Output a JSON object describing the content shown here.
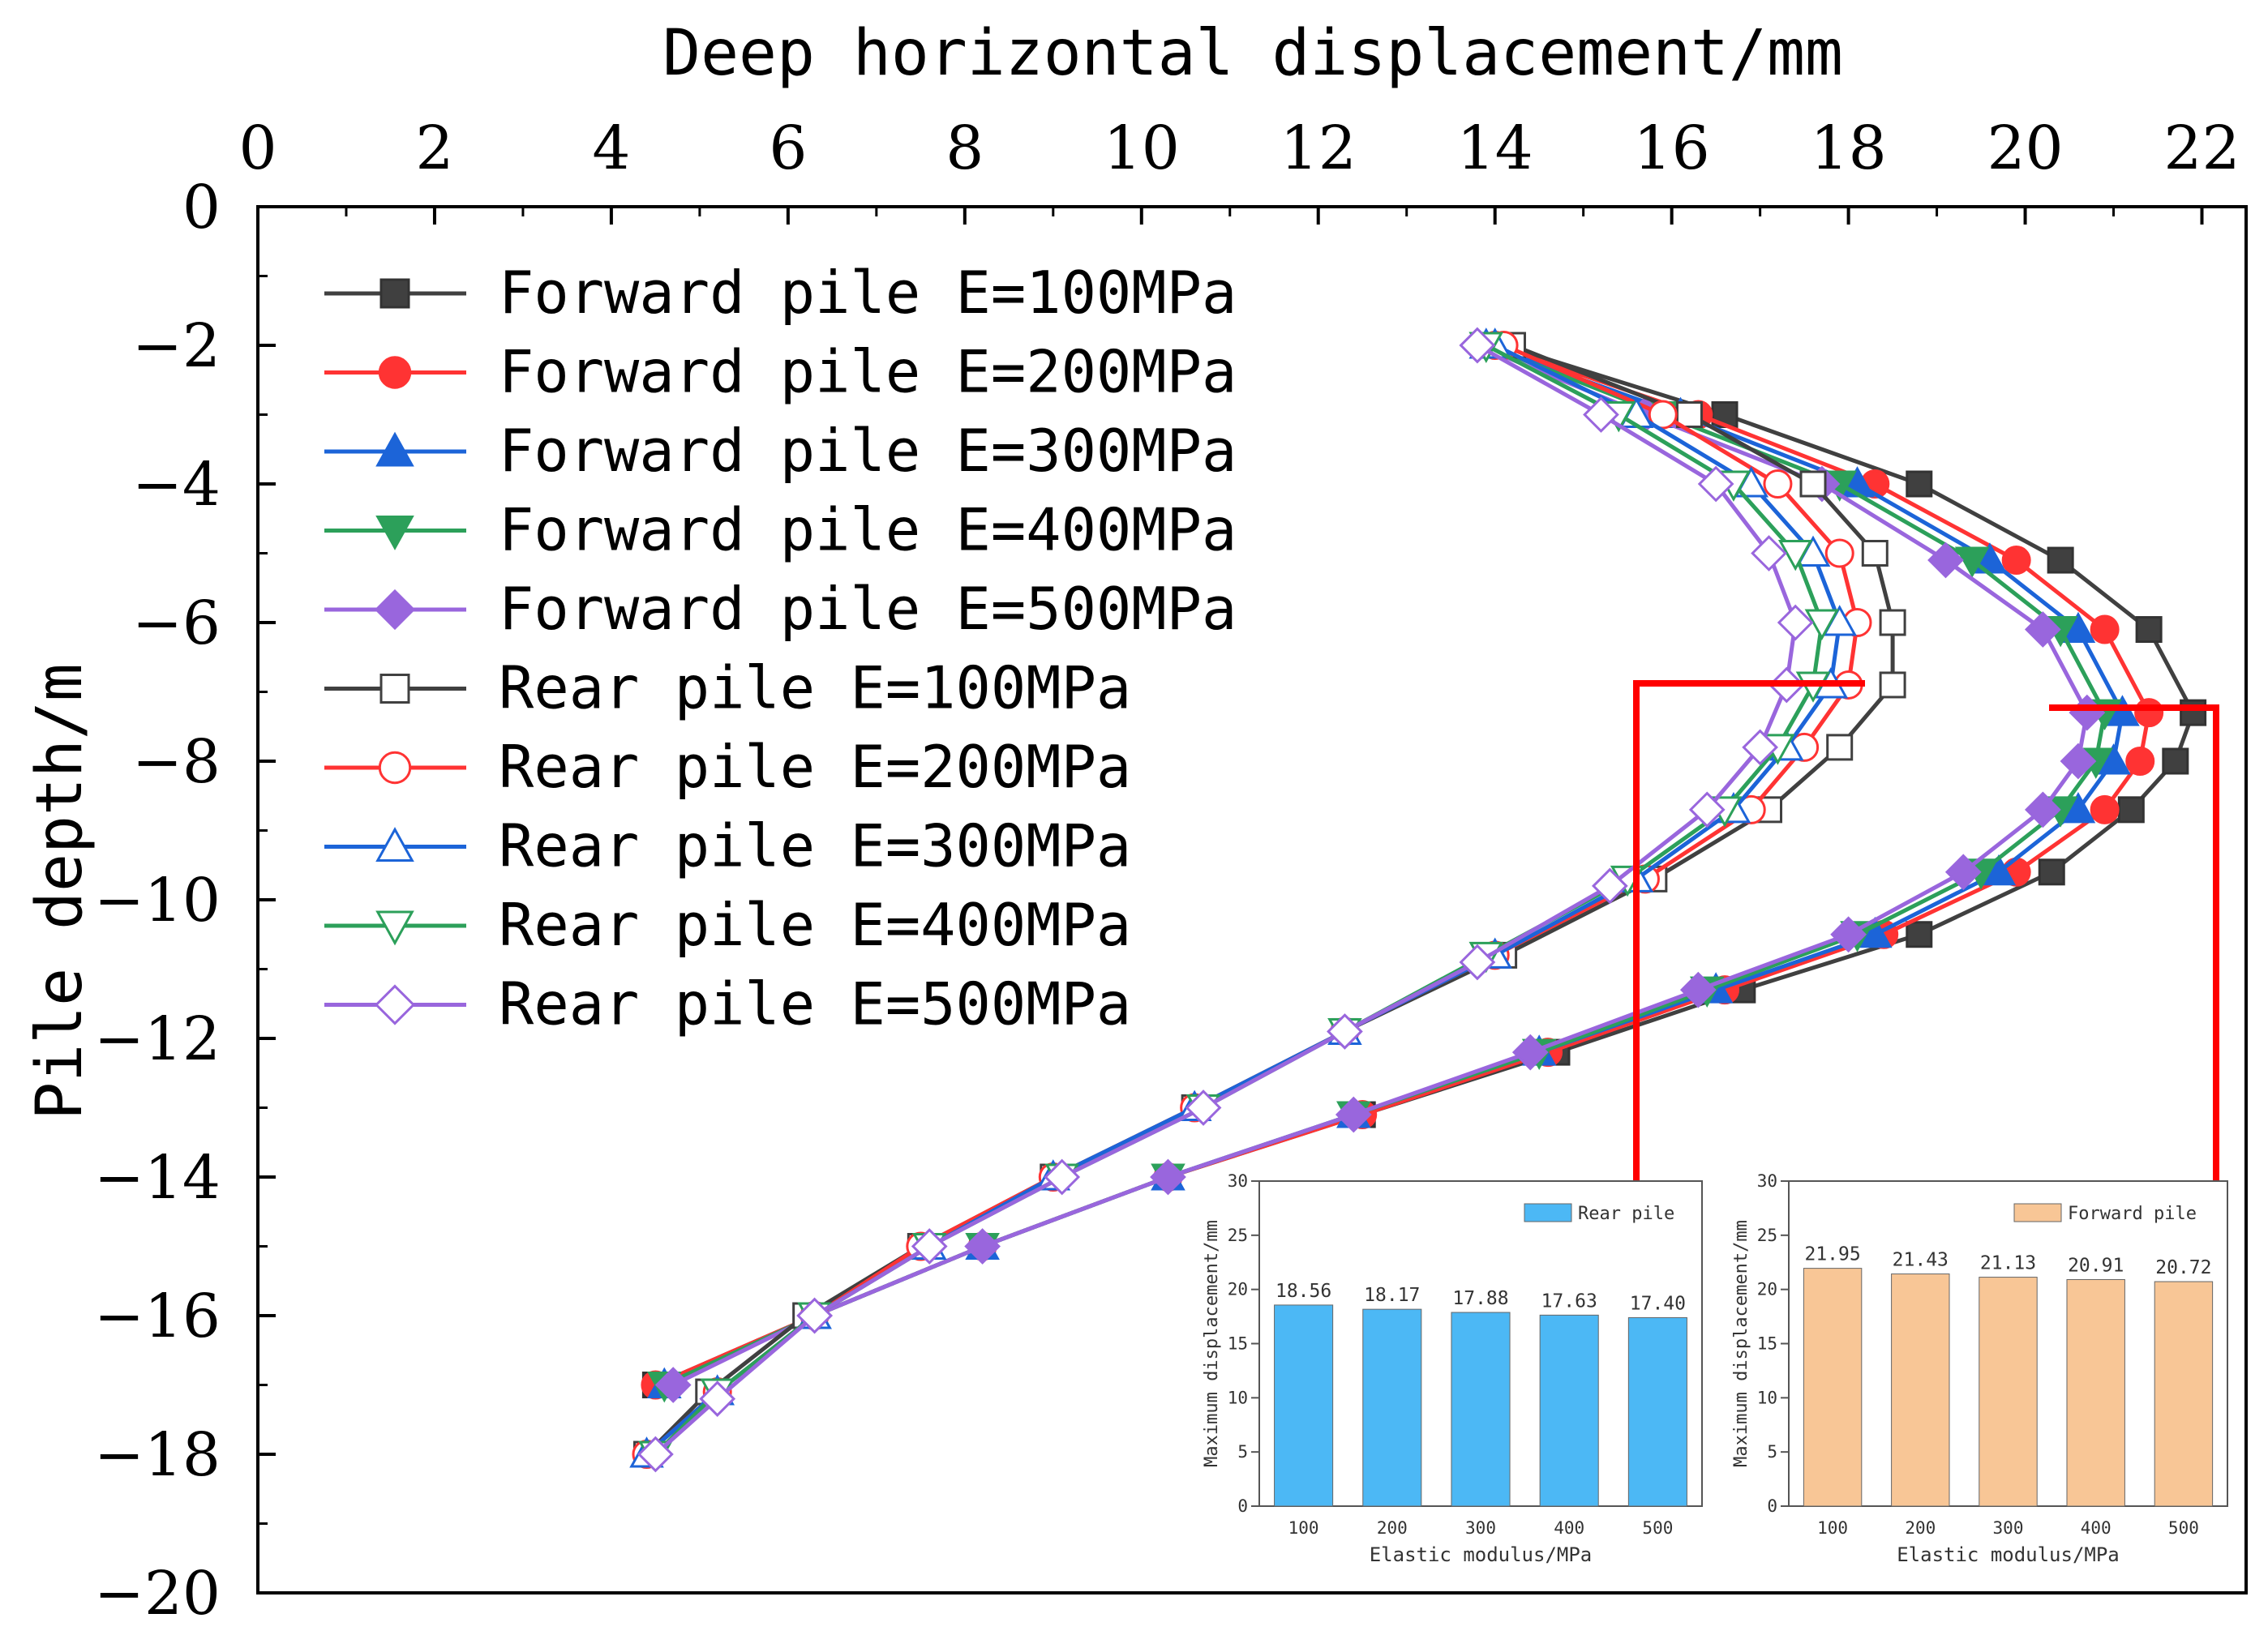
{
  "chart_data": [
    {
      "type": "line",
      "title": "",
      "xlabel": "Deep horizontal displacement/mm",
      "ylabel": "Pile depth/m",
      "xlim": [
        0,
        22.5
      ],
      "ylim": [
        -20,
        0
      ],
      "xticks": [
        0,
        2,
        4,
        6,
        8,
        10,
        12,
        14,
        16,
        18,
        20,
        22
      ],
      "yticks": [
        0,
        -2,
        -4,
        -6,
        -8,
        -10,
        -12,
        -14,
        -16,
        -18,
        -20
      ],
      "x_axis_position": "top",
      "legend_position": "top-left",
      "series": [
        {
          "name": "Forward pile E=100MPa",
          "color": "#404040",
          "marker": "square",
          "filled": true,
          "points": [
            [
              14.1,
              -2
            ],
            [
              16.6,
              -3
            ],
            [
              18.8,
              -4
            ],
            [
              20.4,
              -5.1
            ],
            [
              21.4,
              -6.1
            ],
            [
              21.9,
              -7.3
            ],
            [
              21.7,
              -8
            ],
            [
              21.2,
              -8.7
            ],
            [
              20.3,
              -9.6
            ],
            [
              18.8,
              -10.5
            ],
            [
              16.8,
              -11.3
            ],
            [
              14.7,
              -12.2
            ],
            [
              12.5,
              -13.1
            ],
            [
              10.3,
              -14
            ],
            [
              8.2,
              -15
            ],
            [
              6.3,
              -16
            ],
            [
              4.5,
              -17
            ]
          ]
        },
        {
          "name": "Forward pile E=200MPa",
          "color": "#ff3333",
          "marker": "circle",
          "filled": true,
          "points": [
            [
              14.0,
              -2
            ],
            [
              16.3,
              -3
            ],
            [
              18.3,
              -4
            ],
            [
              19.9,
              -5.1
            ],
            [
              20.9,
              -6.1
            ],
            [
              21.4,
              -7.3
            ],
            [
              21.3,
              -8
            ],
            [
              20.9,
              -8.7
            ],
            [
              19.9,
              -9.6
            ],
            [
              18.4,
              -10.5
            ],
            [
              16.6,
              -11.3
            ],
            [
              14.6,
              -12.2
            ],
            [
              12.5,
              -13.1
            ],
            [
              10.3,
              -14
            ],
            [
              8.2,
              -15
            ],
            [
              6.3,
              -16
            ],
            [
              4.5,
              -17
            ]
          ]
        },
        {
          "name": "Forward pile E=300MPa",
          "color": "#1c64d8",
          "marker": "triangle-up",
          "filled": true,
          "points": [
            [
              13.9,
              -2
            ],
            [
              16.1,
              -3
            ],
            [
              18.1,
              -4
            ],
            [
              19.6,
              -5.1
            ],
            [
              20.6,
              -6.1
            ],
            [
              21.1,
              -7.3
            ],
            [
              21.0,
              -8
            ],
            [
              20.6,
              -8.7
            ],
            [
              19.7,
              -9.6
            ],
            [
              18.3,
              -10.5
            ],
            [
              16.5,
              -11.3
            ],
            [
              14.5,
              -12.2
            ],
            [
              12.4,
              -13.1
            ],
            [
              10.3,
              -14
            ],
            [
              8.2,
              -15
            ],
            [
              6.3,
              -16
            ],
            [
              4.6,
              -17
            ]
          ]
        },
        {
          "name": "Forward pile E=400MPa",
          "color": "#2ca05a",
          "marker": "triangle-down",
          "filled": true,
          "points": [
            [
              13.9,
              -2
            ],
            [
              15.9,
              -3
            ],
            [
              17.9,
              -4
            ],
            [
              19.4,
              -5.1
            ],
            [
              20.4,
              -6.1
            ],
            [
              20.9,
              -7.3
            ],
            [
              20.8,
              -8
            ],
            [
              20.4,
              -8.7
            ],
            [
              19.5,
              -9.6
            ],
            [
              18.1,
              -10.5
            ],
            [
              16.4,
              -11.3
            ],
            [
              14.5,
              -12.2
            ],
            [
              12.4,
              -13.1
            ],
            [
              10.3,
              -14
            ],
            [
              8.2,
              -15
            ],
            [
              6.3,
              -16
            ],
            [
              4.6,
              -17
            ]
          ]
        },
        {
          "name": "Forward pile E=500MPa",
          "color": "#9966dd",
          "marker": "diamond",
          "filled": true,
          "points": [
            [
              13.8,
              -2
            ],
            [
              15.7,
              -3
            ],
            [
              17.7,
              -4
            ],
            [
              19.1,
              -5.1
            ],
            [
              20.2,
              -6.1
            ],
            [
              20.7,
              -7.3
            ],
            [
              20.6,
              -8
            ],
            [
              20.2,
              -8.7
            ],
            [
              19.3,
              -9.6
            ],
            [
              18.0,
              -10.5
            ],
            [
              16.3,
              -11.3
            ],
            [
              14.4,
              -12.2
            ],
            [
              12.4,
              -13.1
            ],
            [
              10.3,
              -14
            ],
            [
              8.2,
              -15
            ],
            [
              6.3,
              -16
            ],
            [
              4.7,
              -17
            ]
          ]
        },
        {
          "name": "Rear pile E=100MPa",
          "color": "#404040",
          "marker": "square",
          "filled": false,
          "points": [
            [
              14.2,
              -2
            ],
            [
              16.2,
              -3
            ],
            [
              17.6,
              -4
            ],
            [
              18.3,
              -5
            ],
            [
              18.5,
              -6
            ],
            [
              18.5,
              -6.9
            ],
            [
              17.9,
              -7.8
            ],
            [
              17.1,
              -8.7
            ],
            [
              15.8,
              -9.7
            ],
            [
              14.1,
              -10.8
            ],
            [
              12.3,
              -11.9
            ],
            [
              10.6,
              -13
            ],
            [
              9.0,
              -14
            ],
            [
              7.5,
              -15
            ],
            [
              6.2,
              -16
            ],
            [
              5.1,
              -17.1
            ],
            [
              4.4,
              -18
            ]
          ]
        },
        {
          "name": "Rear pile E=200MPa",
          "color": "#ff3333",
          "marker": "circle",
          "filled": false,
          "points": [
            [
              14.1,
              -2
            ],
            [
              15.9,
              -3
            ],
            [
              17.2,
              -4
            ],
            [
              17.9,
              -5
            ],
            [
              18.1,
              -6
            ],
            [
              18.0,
              -6.9
            ],
            [
              17.5,
              -7.8
            ],
            [
              16.9,
              -8.7
            ],
            [
              15.7,
              -9.7
            ],
            [
              14.0,
              -10.8
            ],
            [
              12.3,
              -11.9
            ],
            [
              10.6,
              -13
            ],
            [
              9.0,
              -14
            ],
            [
              7.5,
              -15
            ],
            [
              6.3,
              -16
            ],
            [
              5.2,
              -17.1
            ],
            [
              4.4,
              -18
            ]
          ]
        },
        {
          "name": "Rear pile E=300MPa",
          "color": "#1c64d8",
          "marker": "triangle-up",
          "filled": false,
          "points": [
            [
              14.0,
              -2
            ],
            [
              15.6,
              -3
            ],
            [
              16.9,
              -4
            ],
            [
              17.6,
              -5
            ],
            [
              17.9,
              -6
            ],
            [
              17.8,
              -6.9
            ],
            [
              17.3,
              -7.8
            ],
            [
              16.7,
              -8.7
            ],
            [
              15.6,
              -9.7
            ],
            [
              14.0,
              -10.8
            ],
            [
              12.3,
              -11.9
            ],
            [
              10.6,
              -13
            ],
            [
              9.0,
              -14
            ],
            [
              7.6,
              -15
            ],
            [
              6.3,
              -16
            ],
            [
              5.2,
              -17.1
            ],
            [
              4.4,
              -18
            ]
          ]
        },
        {
          "name": "Rear pile E=400MPa",
          "color": "#2ca05a",
          "marker": "triangle-down",
          "filled": false,
          "points": [
            [
              13.9,
              -2
            ],
            [
              15.4,
              -3
            ],
            [
              16.7,
              -4
            ],
            [
              17.4,
              -5
            ],
            [
              17.7,
              -6
            ],
            [
              17.6,
              -6.9
            ],
            [
              17.2,
              -7.8
            ],
            [
              16.6,
              -8.7
            ],
            [
              15.5,
              -9.7
            ],
            [
              13.9,
              -10.8
            ],
            [
              12.3,
              -11.9
            ],
            [
              10.7,
              -13
            ],
            [
              9.1,
              -14
            ],
            [
              7.6,
              -15
            ],
            [
              6.3,
              -16
            ],
            [
              5.2,
              -17.1
            ],
            [
              4.5,
              -18
            ]
          ]
        },
        {
          "name": "Rear pile E=500MPa",
          "color": "#9966dd",
          "marker": "diamond",
          "filled": false,
          "points": [
            [
              13.8,
              -2
            ],
            [
              15.2,
              -3
            ],
            [
              16.5,
              -4
            ],
            [
              17.1,
              -5
            ],
            [
              17.4,
              -6
            ],
            [
              17.3,
              -6.9
            ],
            [
              17.0,
              -7.8
            ],
            [
              16.4,
              -8.7
            ],
            [
              15.3,
              -9.8
            ],
            [
              13.8,
              -10.9
            ],
            [
              12.3,
              -11.9
            ],
            [
              10.7,
              -13
            ],
            [
              9.1,
              -14
            ],
            [
              7.6,
              -15
            ],
            [
              6.3,
              -16
            ],
            [
              5.2,
              -17.2
            ],
            [
              4.5,
              -18
            ]
          ]
        }
      ]
    },
    {
      "type": "bar",
      "title": "",
      "legend": "Rear pile",
      "xlabel": "Elastic modulus/MPa",
      "ylabel": "Maximum displacement/mm",
      "categories": [
        "100",
        "200",
        "300",
        "400",
        "500"
      ],
      "values": [
        18.56,
        18.17,
        17.88,
        17.63,
        17.4
      ],
      "labels": [
        "18.56",
        "18.17",
        "17.88",
        "17.63",
        "17.40"
      ],
      "ylim": [
        0,
        30
      ],
      "yticks": [
        0,
        5,
        10,
        15,
        20,
        25,
        30
      ],
      "color": "#4cb8f5"
    },
    {
      "type": "bar",
      "title": "",
      "legend": "Forward pile",
      "xlabel": "Elastic modulus/MPa",
      "ylabel": "Maximum displacement/mm",
      "categories": [
        "100",
        "200",
        "300",
        "400",
        "500"
      ],
      "values": [
        21.95,
        21.43,
        21.13,
        20.91,
        20.72
      ],
      "labels": [
        "21.95",
        "21.43",
        "21.13",
        "20.91",
        "20.72"
      ],
      "ylim": [
        0,
        30
      ],
      "yticks": [
        0,
        5,
        10,
        15,
        20,
        25,
        30
      ],
      "color": "#f8c696"
    }
  ],
  "annotations": {
    "connector_color": "#ff0000"
  }
}
